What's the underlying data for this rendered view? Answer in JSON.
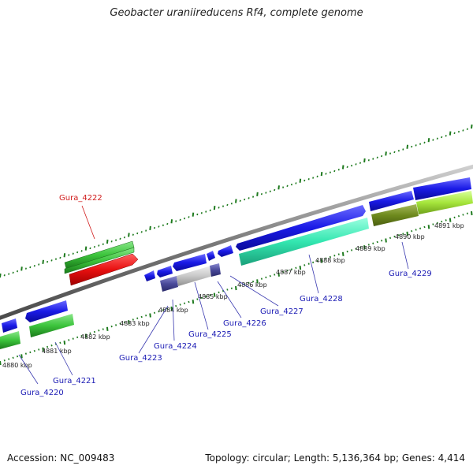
{
  "title": "Geobacter uraniireducens Rf4, complete genome",
  "accession": "Accession: NC_009483",
  "summary": "Topology: circular; Length: 5,136,364 bp; Genes: 4,414",
  "colors": {
    "backbone": "#8a8a8a",
    "ticks": "#1e7a1e",
    "blue_gene": "#1a1ae6",
    "label_blue": "#1a1ab4",
    "label_red": "#d01a1a",
    "red_gene": "#e81010",
    "green_gene": "#3cc43c",
    "cyan_gene": "#33e6b0",
    "olive_gene": "#6e8a1e",
    "lime_gene": "#a6e63c",
    "gray_gene": "#c8c8c8",
    "navy_gene": "#4a4a9a"
  },
  "kbp_labels": [
    "4880 kbp",
    "4881 kbp",
    "4882 kbp",
    "4883 kbp",
    "4884 kbp",
    "4885 kbp",
    "4886 kbp",
    "4887 kbp",
    "4888 kbp",
    "4889 kbp",
    "4890 kbp",
    "4891 kbp"
  ],
  "gene_labels": [
    "Gura_4220",
    "Gura_4221",
    "Gura_4222",
    "Gura_4223",
    "Gura_4224",
    "Gura_4225",
    "Gura_4226",
    "Gura_4227",
    "Gura_4228",
    "Gura_4229"
  ]
}
